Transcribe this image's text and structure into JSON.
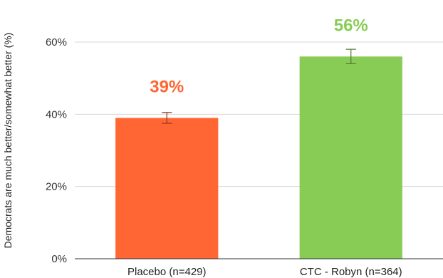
{
  "chart_data": {
    "type": "bar",
    "ylabel": "Democrats are much better/somewhat better (%)",
    "xlabel": "",
    "categories": [
      "Placebo (n=429)",
      "CTC - Robyn (n=364)"
    ],
    "values": [
      39,
      56
    ],
    "data_labels": [
      "39%",
      "56%"
    ],
    "error_bars": [
      {
        "low": 37.5,
        "high": 40.5
      },
      {
        "low": 54,
        "high": 58
      }
    ],
    "colors": [
      "#ff6633",
      "#88cc55"
    ],
    "error_bar_colors": [
      "#8a3a20",
      "#4f7a30"
    ],
    "ylim": [
      0,
      60
    ],
    "yticks": [
      0,
      20,
      40,
      60
    ],
    "ytick_labels": [
      "0%",
      "20%",
      "40%",
      "60%"
    ],
    "grid": true,
    "legend": "none"
  }
}
